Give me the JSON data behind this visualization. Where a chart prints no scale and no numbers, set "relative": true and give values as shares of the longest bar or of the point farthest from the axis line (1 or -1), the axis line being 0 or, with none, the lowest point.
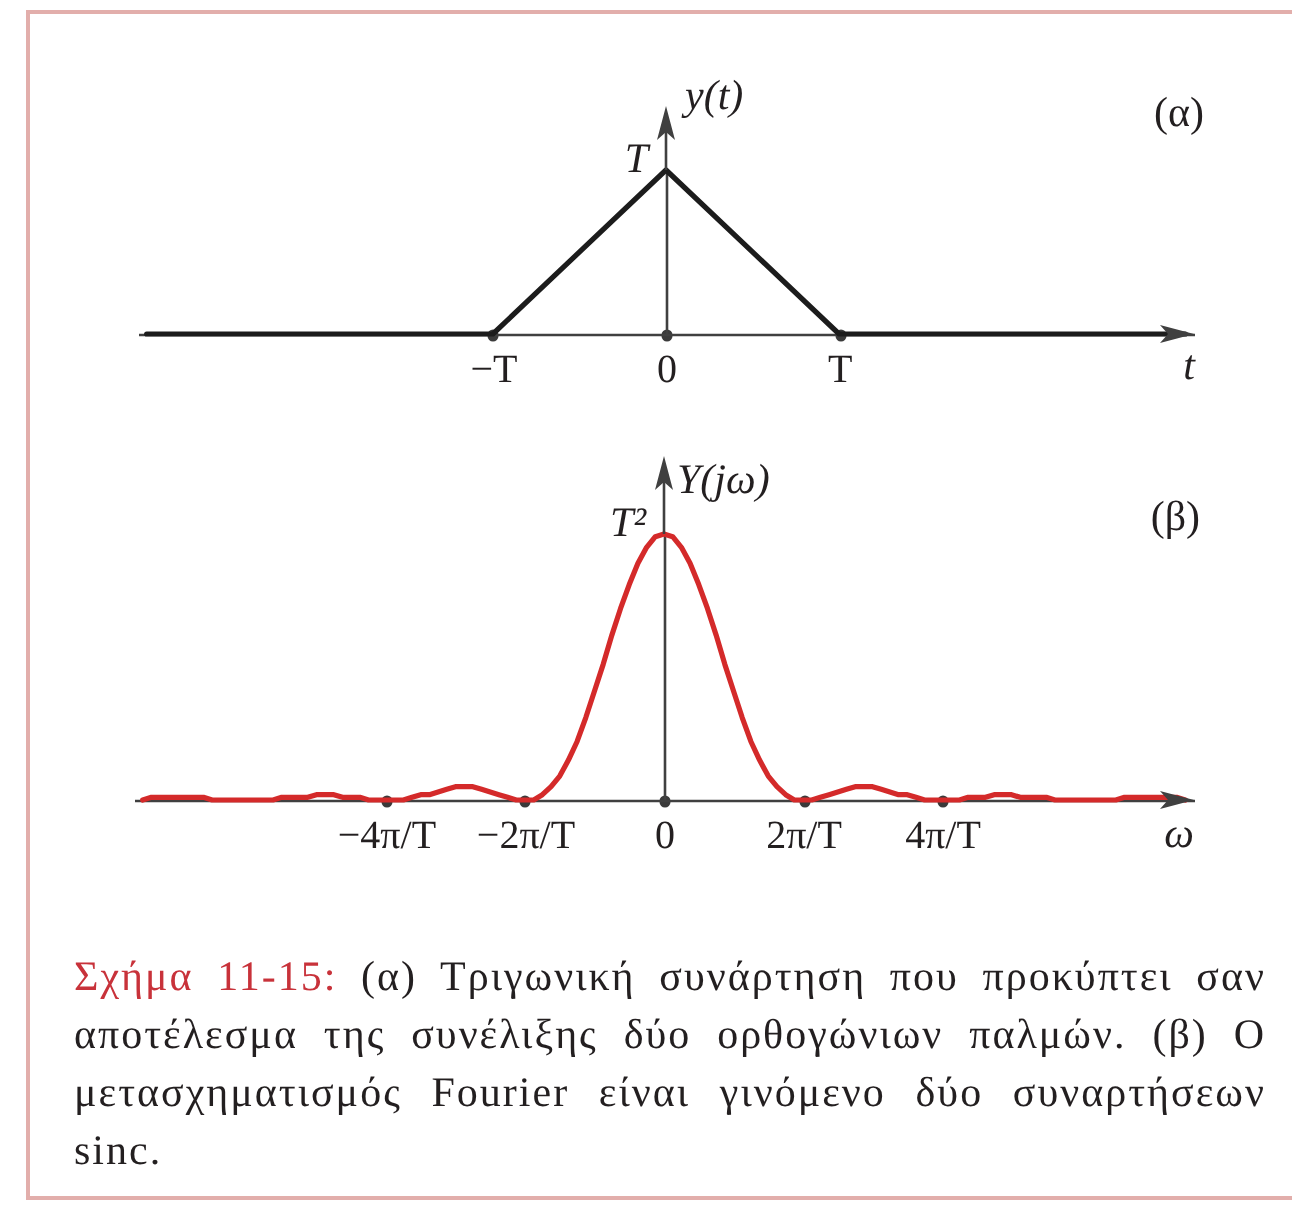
{
  "chart_data": [
    {
      "type": "line",
      "title": "(α)",
      "xlabel": "t",
      "ylabel": "y(t)",
      "relative": true,
      "color": "#1c1c1c",
      "categories": [
        null,
        null,
        "−T",
        "0",
        "T",
        null,
        null
      ],
      "values": [
        0,
        0,
        0,
        1,
        0,
        0,
        0
      ],
      "annotations": [
        {
          "text": "T",
          "x": "0",
          "y": 1
        }
      ]
    },
    {
      "type": "line",
      "title": "(β)",
      "xlabel": "ω",
      "ylabel": "Y(jω)",
      "relative": true,
      "color": "#d42a2a",
      "categories": [
        null,
        null,
        null,
        null,
        null,
        null,
        null,
        null,
        null,
        null,
        null,
        null,
        null,
        null,
        null,
        null,
        null,
        null,
        null,
        null,
        null,
        null,
        null,
        null,
        null,
        null,
        null,
        null,
        "−4π/T",
        null,
        null,
        null,
        null,
        null,
        null,
        null,
        null,
        null,
        null,
        null,
        null,
        null,
        null,
        null,
        "−2π/T",
        null,
        null,
        null,
        null,
        null,
        null,
        null,
        null,
        null,
        null,
        null,
        null,
        null,
        null,
        null,
        "0",
        null,
        null,
        null,
        null,
        null,
        null,
        null,
        null,
        null,
        null,
        null,
        null,
        null,
        null,
        null,
        "2π/T",
        null,
        null,
        null,
        null,
        null,
        null,
        null,
        null,
        null,
        null,
        null,
        null,
        null,
        null,
        null,
        "4π/T",
        null,
        null,
        null,
        null,
        null,
        null,
        null,
        null,
        null,
        null,
        null,
        null,
        null,
        null,
        null,
        null,
        null,
        null,
        null,
        null,
        null,
        null,
        null,
        null,
        null,
        null,
        null,
        null
      ],
      "values": [
        0,
        0.01,
        0.01,
        0.01,
        0.01,
        0.01,
        0.01,
        0.01,
        0,
        0,
        0,
        0,
        0,
        0,
        0,
        0,
        0.01,
        0.01,
        0.01,
        0.01,
        0.02,
        0.02,
        0.02,
        0.01,
        0.01,
        0.01,
        0,
        0,
        0,
        0,
        0,
        0.01,
        0.02,
        0.02,
        0.03,
        0.04,
        0.05,
        0.05,
        0.05,
        0.04,
        0.03,
        0.02,
        0.01,
        0,
        0,
        0,
        0.02,
        0.05,
        0.09,
        0.15,
        0.22,
        0.31,
        0.41,
        0.51,
        0.62,
        0.72,
        0.81,
        0.89,
        0.95,
        0.99,
        1,
        0.99,
        0.95,
        0.89,
        0.81,
        0.72,
        0.62,
        0.51,
        0.41,
        0.31,
        0.22,
        0.15,
        0.09,
        0.05,
        0.02,
        0,
        0,
        0,
        0.01,
        0.02,
        0.03,
        0.04,
        0.05,
        0.05,
        0.05,
        0.04,
        0.03,
        0.02,
        0.02,
        0.01,
        0,
        0,
        0,
        0,
        0,
        0.01,
        0.01,
        0.01,
        0.02,
        0.02,
        0.02,
        0.01,
        0.01,
        0.01,
        0.01,
        0,
        0,
        0,
        0,
        0,
        0,
        0,
        0,
        0.01,
        0.01,
        0.01,
        0.01,
        0.01,
        0.01,
        0.01,
        0
      ],
      "annotations": [
        {
          "text": "T²",
          "x": "0",
          "y": 1
        },
        "Σχήμα 11-15: (α) Τριγωνική συνάρτηση που προκύπτει σαν αποτέλεσμα της συνέλιξης δύο ορθογώνιων παλμών. (β) Ο μετασχηματισμός Fourier είναι γινόμενο δύο συναρτήσεων sinc."
      ]
    }
  ]
}
